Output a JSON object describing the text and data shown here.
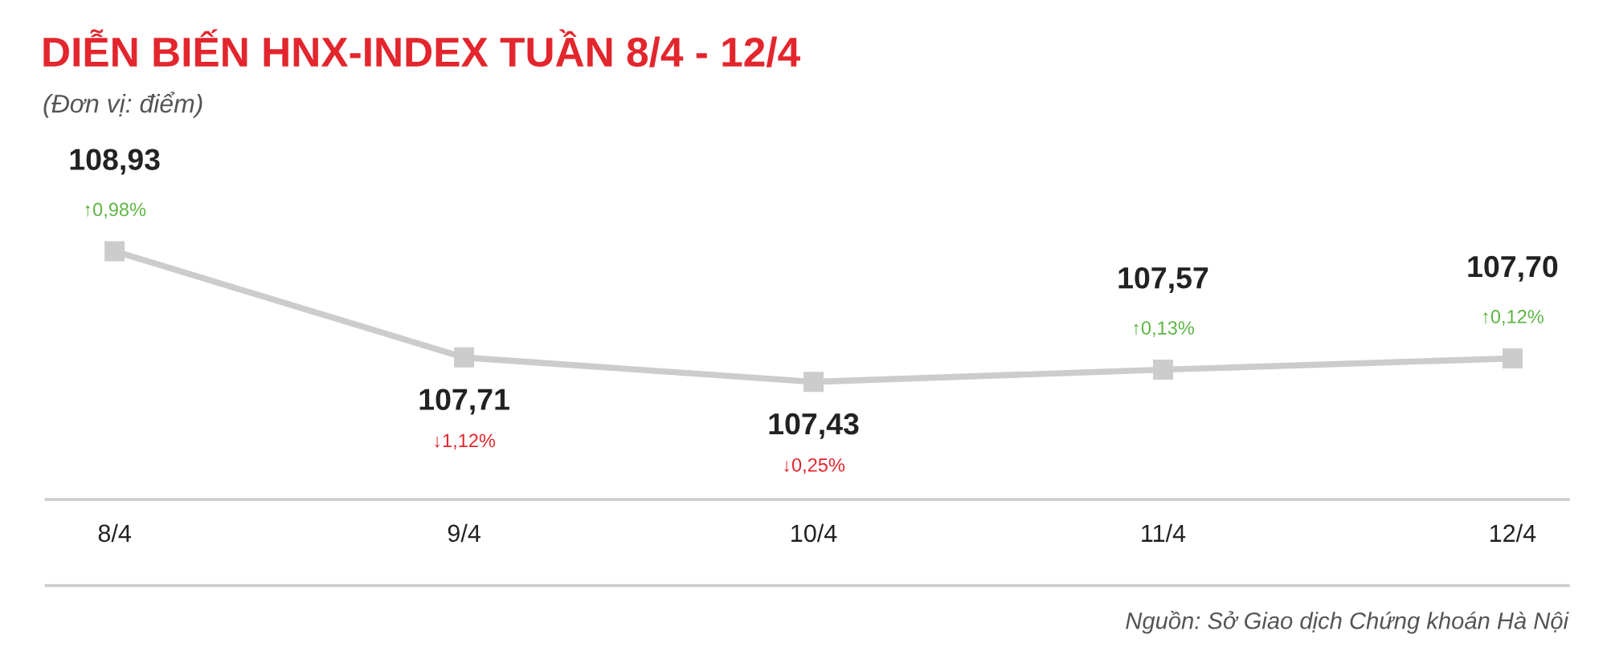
{
  "chart_data": {
    "type": "line",
    "title": "DIỄN BIẾN HNX-INDEX TUẦN 8/4 - 12/4",
    "subtitle": "(Đơn vị: điểm)",
    "categories": [
      "8/4",
      "9/4",
      "10/4",
      "11/4",
      "12/4"
    ],
    "series": [
      {
        "color": "#cccccc",
        "values": [
          108.93,
          107.71,
          107.43,
          107.57,
          107.7
        ],
        "value_labels": [
          "108,93",
          "107,71",
          "107,43",
          "107,57",
          "107,70"
        ]
      }
    ],
    "marker": "square",
    "line_style": "solid",
    "grid": false,
    "legend": false,
    "annotations": [
      "↑0,98%",
      "↓1,12%",
      "↓0,25%",
      "↑0,13%",
      "↑0,12%",
      "Nguồn: Sở Giao dịch Chứng khoán Hà Nội"
    ]
  }
}
